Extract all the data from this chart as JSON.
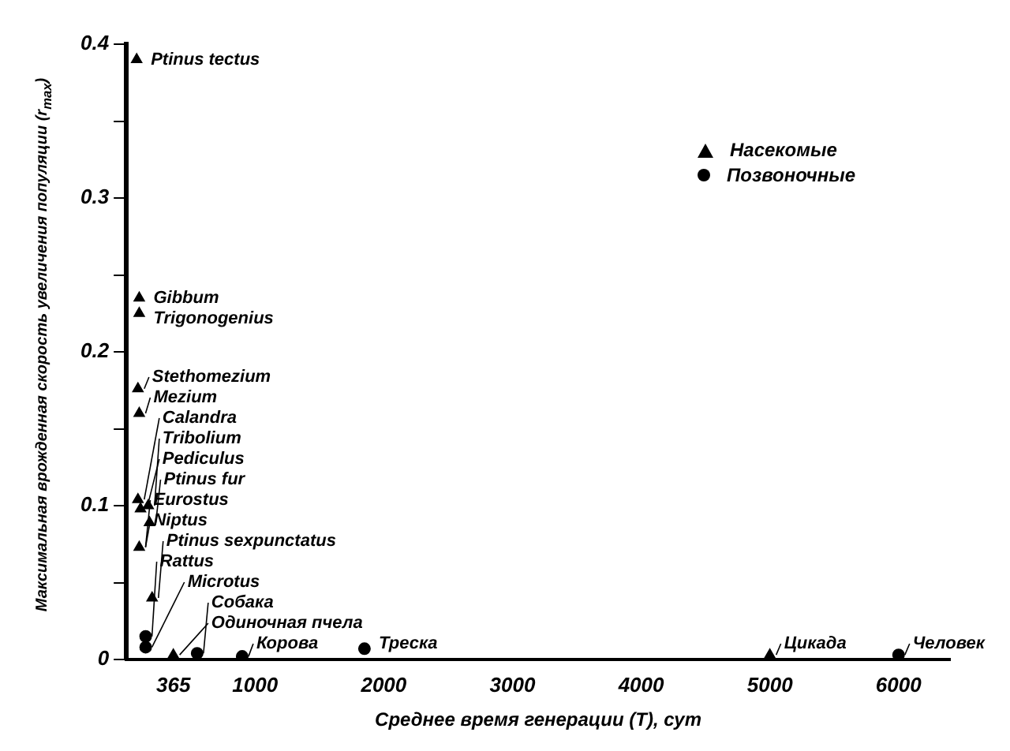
{
  "chart_data": {
    "type": "scatter",
    "xlabel": "Среднее время генерации (T), сут",
    "ylabel": "Максимальная врожденная скорость увеличения популяции (r$_{max}$)",
    "xlim": [
      0,
      6400
    ],
    "xticks": [
      365,
      1000,
      2000,
      3000,
      4000,
      5000,
      6000
    ],
    "ylim": [
      0,
      0.4
    ],
    "yticks": [
      0,
      {
        "value": 0.05,
        "label": null
      },
      0.1,
      {
        "value": 0.15,
        "label": null
      },
      0.2,
      {
        "value": 0.25,
        "label": null
      },
      0.3,
      {
        "value": 0.35,
        "label": null
      },
      0.4
    ],
    "legend": "top right",
    "grid": false,
    "series": [
      {
        "name": "Насекомые",
        "color": "#000000",
        "marker": "triangle",
        "x": [
          80,
          100,
          100,
          90,
          100,
          90,
          170,
          110,
          180,
          100,
          200,
          365,
          5000
        ],
        "values": [
          0.39,
          0.235,
          0.225,
          0.176,
          0.16,
          0.104,
          0.1,
          0.098,
          0.089,
          0.073,
          0.04,
          0.003,
          0.003
        ]
      },
      {
        "name": "Позвоночные",
        "color": "#000000",
        "marker": "circle",
        "x": [
          150,
          150,
          550,
          900,
          1850,
          6000
        ],
        "values": [
          0.015,
          0.008,
          0.004,
          0.002,
          0.007,
          0.003
        ]
      }
    ],
    "annotations": [
      {
        "text": "Ptinus tectus",
        "x": 80,
        "y": 0.39
      },
      {
        "text": "Gibbum",
        "x": 100,
        "y": 0.235
      },
      {
        "text": "Trigonogenius",
        "x": 100,
        "y": 0.225
      },
      {
        "text": "Stethomezium",
        "x": 90,
        "y": 0.176
      },
      {
        "text": "Mezium",
        "x": 100,
        "y": 0.16
      },
      {
        "text": "Calandra",
        "x": 90,
        "y": 0.104
      },
      {
        "text": "Tribolium",
        "x": 170,
        "y": 0.1
      },
      {
        "text": "Pediculus",
        "x": 110,
        "y": 0.098
      },
      {
        "text": "Ptinus fur",
        "x": 180,
        "y": 0.089
      },
      {
        "text": "Eurostus",
        "x": 100,
        "y": 0.073
      },
      {
        "text": "Niptus",
        "x": 100,
        "y": 0.073
      },
      {
        "text": "Ptinus sexpunctatus",
        "x": 200,
        "y": 0.04
      },
      {
        "text": "Microtus",
        "x": 150,
        "y": 0.008
      },
      {
        "text": "Rattus",
        "x": 150,
        "y": 0.015
      },
      {
        "text": "Собака",
        "x": 550,
        "y": 0.004
      },
      {
        "text": "Одиночная пчела",
        "x": 365,
        "y": 0.003
      },
      {
        "text": "Корова",
        "x": 900,
        "y": 0.002
      },
      {
        "text": "Треска",
        "x": 1850,
        "y": 0.007
      },
      {
        "text": "Цикада",
        "x": 5000,
        "y": 0.003
      },
      {
        "text": "Человек",
        "x": 6000,
        "y": 0.003
      }
    ]
  }
}
